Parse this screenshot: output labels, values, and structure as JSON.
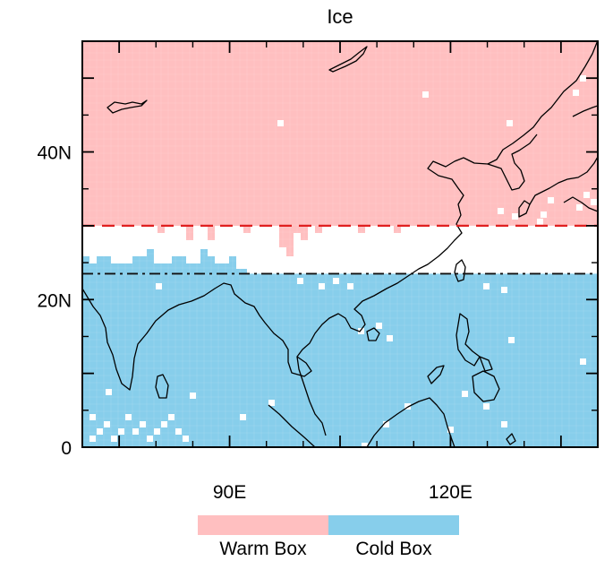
{
  "map": {
    "title": "Ice",
    "x_ticks": [
      {
        "value": 90,
        "label": "90E"
      },
      {
        "value": 120,
        "label": "120E"
      }
    ],
    "y_ticks": [
      {
        "value": 0,
        "label": "0"
      },
      {
        "value": 20,
        "label": "20N"
      },
      {
        "value": 40,
        "label": "40N"
      }
    ],
    "lon_range": [
      70,
      140
    ],
    "lat_range": [
      0,
      55
    ],
    "warm_boundary_lat": 30,
    "cold_boundary_lat": 23.5,
    "colors": {
      "warm": "#ffbfc0",
      "cold": "#87ceeb",
      "warm_line": "#e02020",
      "cold_line": "#111111",
      "coast": "#000000"
    }
  },
  "legend": {
    "items": [
      {
        "label": "Warm Box",
        "color": "#ffbfc0"
      },
      {
        "label": "Cold Box",
        "color": "#87ceeb"
      }
    ]
  }
}
